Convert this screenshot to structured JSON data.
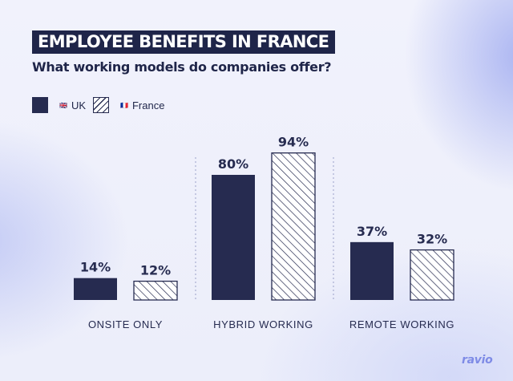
{
  "title": "EMPLOYEE BENEFITS IN FRANCE",
  "subtitle": "What working models do companies offer?",
  "legend": [
    {
      "flag": "🇬🇧",
      "label": "UK",
      "style": "solid"
    },
    {
      "flag": "🇫🇷",
      "label": "France",
      "style": "hatched"
    }
  ],
  "brand": "ravio",
  "colors": {
    "navy": "#262b50",
    "hatch": "#262b50",
    "background": "#eef0fb",
    "logo": "#7e8be6"
  },
  "chart_data": {
    "type": "bar",
    "categories": [
      "ONSITE ONLY",
      "HYBRID WORKING",
      "REMOTE WORKING"
    ],
    "series": [
      {
        "name": "UK",
        "values": [
          14,
          80,
          37
        ],
        "labels": [
          "14%",
          "80%",
          "37%"
        ]
      },
      {
        "name": "France",
        "values": [
          12,
          94,
          32
        ],
        "labels": [
          "12%",
          "94%",
          "32%"
        ]
      }
    ],
    "grid": false,
    "legend_position": "top-left"
  }
}
